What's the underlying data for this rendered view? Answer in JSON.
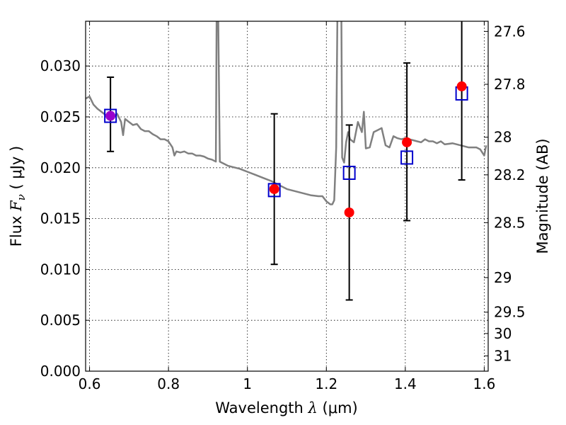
{
  "chart_data": {
    "type": "scatter",
    "xlabel_prefix": "Wavelength",
    "xlabel_symbol": "λ",
    "xlabel_unit": "(μm)",
    "ylabel_prefix": "Flux",
    "ylabel_symbol": "F",
    "ylabel_subscript": "ν",
    "ylabel_unit": "( μJy )",
    "y2label": "Magnitude (AB)",
    "xlim": [
      0.59,
      1.61
    ],
    "ylim": [
      0.0,
      0.0344
    ],
    "grid": true,
    "x_ticks": [
      0.6,
      0.8,
      1.0,
      1.2,
      1.4,
      1.6
    ],
    "x_tick_labels": [
      "0.6",
      "0.8",
      "1",
      "1.2",
      "1.4",
      "1.6"
    ],
    "y_ticks": [
      0.0,
      0.005,
      0.01,
      0.015,
      0.02,
      0.025,
      0.03
    ],
    "y_tick_labels": [
      "0.000",
      "0.005",
      "0.010",
      "0.015",
      "0.020",
      "0.025",
      "0.030"
    ],
    "mag_ticks": [
      {
        "label": "27.6",
        "y": 0.0334
      },
      {
        "label": "27.8",
        "y": 0.0282
      },
      {
        "label": "28",
        "y": 0.023
      },
      {
        "label": "28.2",
        "y": 0.0193
      },
      {
        "label": "28.5",
        "y": 0.0146
      },
      {
        "label": "29",
        "y": 0.0092
      },
      {
        "label": "29.5",
        "y": 0.0058
      },
      {
        "label": "30",
        "y": 0.0037
      },
      {
        "label": "31",
        "y": 0.0015
      }
    ],
    "series": [
      {
        "style": "line",
        "color": "#808080",
        "x": [
          0.59,
          0.6,
          0.61,
          0.62,
          0.63,
          0.64,
          0.65,
          0.66,
          0.67,
          0.68,
          0.685,
          0.69,
          0.7,
          0.71,
          0.72,
          0.73,
          0.74,
          0.75,
          0.76,
          0.77,
          0.78,
          0.79,
          0.8,
          0.81,
          0.815,
          0.82,
          0.83,
          0.84,
          0.85,
          0.86,
          0.87,
          0.88,
          0.89,
          0.9,
          0.91,
          0.92,
          0.922,
          0.926,
          0.93,
          0.94,
          0.95,
          0.96,
          0.98,
          1.0,
          1.02,
          1.04,
          1.06,
          1.08,
          1.1,
          1.12,
          1.14,
          1.16,
          1.18,
          1.19,
          1.2,
          1.21,
          1.215,
          1.22,
          1.225,
          1.228,
          1.23,
          1.234,
          1.238,
          1.24,
          1.245,
          1.25,
          1.255,
          1.26,
          1.27,
          1.28,
          1.29,
          1.295,
          1.3,
          1.31,
          1.32,
          1.33,
          1.34,
          1.35,
          1.36,
          1.37,
          1.38,
          1.39,
          1.4,
          1.41,
          1.42,
          1.43,
          1.44,
          1.45,
          1.46,
          1.47,
          1.48,
          1.49,
          1.5,
          1.52,
          1.54,
          1.56,
          1.58,
          1.59,
          1.6,
          1.605
        ],
        "y": [
          0.0268,
          0.027,
          0.0262,
          0.0258,
          0.0255,
          0.0252,
          0.0251,
          0.0249,
          0.0253,
          0.0245,
          0.0232,
          0.0248,
          0.0245,
          0.0242,
          0.0243,
          0.0238,
          0.0236,
          0.0236,
          0.0233,
          0.0231,
          0.0228,
          0.0228,
          0.0226,
          0.022,
          0.0212,
          0.0216,
          0.0215,
          0.0216,
          0.0214,
          0.0214,
          0.0212,
          0.0212,
          0.0211,
          0.0209,
          0.0208,
          0.0206,
          0.035,
          0.035,
          0.0206,
          0.0204,
          0.0202,
          0.0201,
          0.0199,
          0.0196,
          0.0193,
          0.019,
          0.0187,
          0.0183,
          0.0179,
          0.0177,
          0.0175,
          0.0173,
          0.0172,
          0.0172,
          0.0167,
          0.0164,
          0.0164,
          0.0168,
          0.022,
          0.035,
          0.035,
          0.035,
          0.035,
          0.021,
          0.0205,
          0.0225,
          0.0235,
          0.0228,
          0.0225,
          0.0245,
          0.0235,
          0.0255,
          0.0219,
          0.022,
          0.0235,
          0.0237,
          0.0239,
          0.0222,
          0.022,
          0.0231,
          0.0229,
          0.0228,
          0.0229,
          0.0228,
          0.0227,
          0.0226,
          0.0225,
          0.0228,
          0.0226,
          0.0226,
          0.0224,
          0.0226,
          0.0223,
          0.0224,
          0.0222,
          0.022,
          0.022,
          0.0218,
          0.0212,
          0.0222
        ]
      },
      {
        "style": "errorbar",
        "color": "#000000",
        "points": [
          {
            "x": 0.653,
            "low": 0.0216,
            "high": 0.0289
          },
          {
            "x": 1.068,
            "low": 0.0105,
            "high": 0.0253
          },
          {
            "x": 1.258,
            "low": 0.007,
            "high": 0.0242
          },
          {
            "x": 1.404,
            "low": 0.0148,
            "high": 0.0303
          },
          {
            "x": 1.543,
            "low": 0.0188,
            "high": 0.0345
          }
        ]
      },
      {
        "style": "open-square",
        "color": "#0000cc",
        "x": [
          0.653,
          1.068,
          1.258,
          1.404,
          1.543
        ],
        "y": [
          0.0251,
          0.0178,
          0.0195,
          0.021,
          0.0273
        ]
      },
      {
        "style": "filled-circle",
        "color": "#ff0000",
        "overlap_color": "#9900cc",
        "x": [
          0.653,
          1.068,
          1.258,
          1.404,
          1.543
        ],
        "y": [
          0.0251,
          0.0179,
          0.0156,
          0.0225,
          0.028
        ]
      }
    ]
  }
}
